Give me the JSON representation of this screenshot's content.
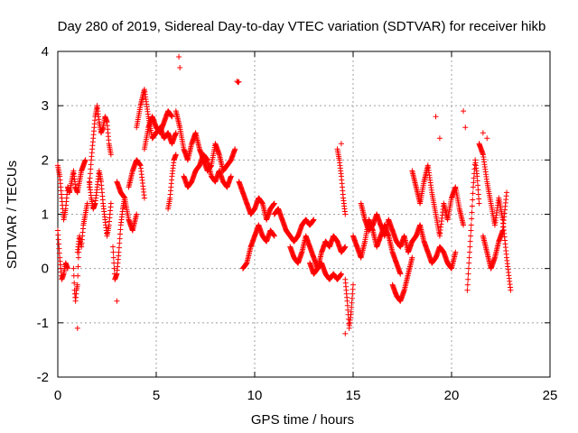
{
  "chart_data": {
    "type": "scatter",
    "title": "Day 280 of 2019, Sidereal Day-to-day VTEC variation (SDTVAR) for receiver hikb",
    "xlabel": "GPS time / hours",
    "ylabel": "SDTVAR / TECUs",
    "xlim": [
      0,
      25
    ],
    "ylim": [
      -2,
      4
    ],
    "xticks": [
      0,
      5,
      10,
      15,
      20,
      25
    ],
    "yticks": [
      -2,
      -1,
      0,
      1,
      2,
      3,
      4
    ],
    "xtick_labels": [
      "0",
      "5",
      "10",
      "15",
      "20",
      "25"
    ],
    "ytick_labels": [
      "-2",
      "-1",
      "0",
      "1",
      "2",
      "3",
      "4"
    ],
    "grid": true,
    "marker": "+",
    "series": [
      {
        "name": "SDTVAR",
        "color": "#ff0000",
        "segments": [
          {
            "x": [
              0.0,
              0.1,
              0.2,
              0.3,
              0.4,
              0.5,
              0.6,
              0.7,
              0.8,
              0.9,
              1.0,
              1.1,
              1.2,
              1.3,
              1.4
            ],
            "y": [
              1.9,
              1.7,
              1.3,
              0.9,
              1.1,
              1.5,
              1.4,
              1.6,
              1.8,
              1.5,
              1.4,
              1.6,
              1.8,
              1.9,
              2.0
            ]
          },
          {
            "x": [
              0.0,
              0.1,
              0.2,
              0.3,
              0.4,
              0.5
            ],
            "y": [
              0.7,
              0.2,
              -0.2,
              -0.1,
              0.1,
              0.0
            ]
          },
          {
            "x": [
              0.8,
              0.85,
              0.9,
              0.95,
              1.0,
              1.05,
              1.1
            ],
            "y": [
              0.0,
              -0.4,
              -0.6,
              -0.4,
              -0.3,
              0.2,
              0.5
            ]
          },
          {
            "x": [
              1.0,
              1.1,
              1.2,
              1.3,
              1.4,
              1.5
            ],
            "y": [
              0.3,
              0.6,
              0.4,
              0.8,
              1.0,
              1.2
            ]
          },
          {
            "x": [
              1.6,
              1.7,
              1.8,
              1.9,
              2.0,
              2.1,
              2.2,
              2.3,
              2.4,
              2.5,
              2.6,
              2.7
            ],
            "y": [
              1.5,
              2.0,
              2.4,
              2.8,
              3.0,
              2.7,
              2.5,
              2.6,
              2.8,
              2.7,
              2.3,
              2.1
            ]
          },
          {
            "x": [
              1.6,
              1.7,
              1.8,
              1.9,
              2.0,
              2.1,
              2.2,
              2.3,
              2.4,
              2.5,
              2.6,
              2.7
            ],
            "y": [
              1.6,
              1.3,
              1.1,
              1.2,
              1.5,
              1.8,
              1.6,
              1.2,
              0.9,
              0.6,
              0.8,
              1.2
            ]
          },
          {
            "x": [
              2.8,
              2.9,
              3.0,
              3.1,
              3.2,
              3.3,
              3.4
            ],
            "y": [
              0.4,
              -0.2,
              -0.1,
              0.3,
              0.8,
              1.1,
              1.3
            ]
          },
          {
            "x": [
              3.0,
              3.2,
              3.4,
              3.6,
              3.8,
              4.0
            ],
            "y": [
              1.6,
              1.4,
              1.3,
              0.9,
              0.7,
              1.0
            ]
          },
          {
            "x": [
              3.6,
              3.8,
              4.0,
              4.2,
              4.4
            ],
            "y": [
              1.5,
              1.8,
              2.0,
              1.9,
              1.3
            ]
          },
          {
            "x": [
              4.0,
              4.2,
              4.4,
              4.6,
              4.8,
              5.0,
              5.2,
              5.4,
              5.6,
              5.8,
              6.0
            ],
            "y": [
              2.6,
              3.0,
              3.3,
              2.8,
              2.4,
              2.5,
              2.6,
              2.4,
              2.5,
              2.3,
              2.5
            ]
          },
          {
            "x": [
              4.4,
              4.6,
              4.8,
              5.0,
              5.2,
              5.4,
              5.6,
              5.8
            ],
            "y": [
              2.2,
              2.6,
              2.8,
              2.6,
              2.5,
              2.7,
              2.9,
              2.8
            ]
          },
          {
            "x": [
              5.6,
              5.7,
              5.8,
              5.9,
              6.0
            ],
            "y": [
              1.1,
              1.3,
              1.7,
              2.0,
              2.1
            ]
          },
          {
            "x": [
              6.0,
              6.2,
              6.4,
              6.6,
              6.8,
              7.0,
              7.2,
              7.4,
              7.6,
              7.8,
              8.0,
              8.2,
              8.4,
              8.6,
              8.8,
              9.0
            ],
            "y": [
              2.9,
              2.6,
              2.2,
              2.0,
              2.3,
              2.5,
              2.2,
              2.0,
              1.8,
              1.9,
              2.3,
              2.1,
              1.8,
              1.9,
              2.0,
              2.2
            ]
          },
          {
            "x": [
              6.4,
              6.6,
              6.8,
              7.0,
              7.2,
              7.4,
              7.6,
              7.8,
              8.0,
              8.2,
              8.4,
              8.6,
              8.8
            ],
            "y": [
              1.7,
              1.5,
              1.6,
              1.8,
              1.9,
              2.1,
              2.0,
              1.7,
              1.6,
              1.8,
              1.6,
              1.5,
              1.7
            ]
          },
          {
            "x": [
              9.2,
              9.4,
              9.6,
              9.8,
              10.0,
              10.2,
              10.4,
              10.6,
              10.8,
              11.0
            ],
            "y": [
              1.6,
              1.4,
              1.2,
              1.0,
              1.1,
              1.3,
              1.2,
              0.9,
              1.1,
              1.2
            ]
          },
          {
            "x": [
              9.4,
              9.6,
              9.8,
              10.0,
              10.2,
              10.4,
              10.6,
              10.8,
              11.0
            ],
            "y": [
              0.0,
              0.1,
              0.4,
              0.6,
              0.8,
              0.6,
              0.5,
              0.7,
              0.6
            ]
          },
          {
            "x": [
              11.0,
              11.2,
              11.4,
              11.6,
              11.8,
              12.0,
              12.2,
              12.4,
              12.6,
              12.8,
              13.0
            ],
            "y": [
              1.0,
              1.1,
              0.9,
              0.7,
              0.6,
              0.5,
              0.6,
              0.8,
              0.9,
              0.8,
              0.9
            ]
          },
          {
            "x": [
              11.8,
              12.0,
              12.2,
              12.4,
              12.6,
              12.8,
              13.0,
              13.2,
              13.4,
              13.6,
              13.8,
              14.0,
              14.2,
              14.4,
              14.6
            ],
            "y": [
              0.4,
              0.2,
              0.1,
              0.3,
              0.6,
              0.4,
              0.2,
              0.0,
              0.3,
              0.5,
              0.4,
              0.6,
              0.5,
              0.3,
              0.4
            ]
          },
          {
            "x": [
              12.8,
              13.0,
              13.2,
              13.4,
              13.6,
              13.8,
              14.0,
              14.2,
              14.4
            ],
            "y": [
              0.1,
              -0.1,
              0.0,
              0.1,
              -0.1,
              -0.2,
              -0.1,
              -0.2,
              -0.1
            ]
          },
          {
            "x": [
              14.2,
              14.3,
              14.4,
              14.5,
              14.6
            ],
            "y": [
              2.2,
              2.0,
              1.7,
              1.3,
              1.0
            ]
          },
          {
            "x": [
              14.6,
              14.7,
              14.8,
              14.9,
              15.0
            ],
            "y": [
              -0.2,
              -0.6,
              -1.1,
              -0.8,
              -0.3
            ]
          },
          {
            "x": [
              15.0,
              15.2,
              15.4,
              15.6,
              15.8,
              16.0,
              16.2,
              16.4,
              16.6,
              16.8,
              17.0,
              17.2,
              17.4
            ],
            "y": [
              0.6,
              0.4,
              0.2,
              0.5,
              0.9,
              0.7,
              0.4,
              0.6,
              0.8,
              0.6,
              0.3,
              0.1,
              -0.1
            ]
          },
          {
            "x": [
              15.4,
              15.6,
              15.8,
              16.0,
              16.2,
              16.4,
              16.6,
              16.8,
              17.0,
              17.2,
              17.4,
              17.6,
              17.8,
              18.0,
              18.2,
              18.4
            ],
            "y": [
              1.2,
              0.9,
              0.7,
              0.8,
              1.0,
              0.8,
              0.6,
              0.9,
              0.7,
              0.5,
              0.4,
              0.6,
              0.3,
              0.5,
              0.6,
              0.8
            ]
          },
          {
            "x": [
              17.0,
              17.2,
              17.4,
              17.6,
              17.8,
              18.0
            ],
            "y": [
              -0.3,
              -0.5,
              -0.6,
              -0.4,
              -0.1,
              0.2
            ]
          },
          {
            "x": [
              18.0,
              18.2,
              18.4,
              18.6,
              18.8,
              19.0,
              19.2,
              19.4,
              19.6,
              19.8,
              20.0,
              20.2,
              20.4,
              20.6
            ],
            "y": [
              1.8,
              1.5,
              1.2,
              1.6,
              1.9,
              1.4,
              1.0,
              0.6,
              1.2,
              0.9,
              1.3,
              1.5,
              1.1,
              0.8
            ]
          },
          {
            "x": [
              18.4,
              18.6,
              18.8,
              19.0,
              19.2,
              19.4,
              19.6,
              19.8,
              20.0,
              20.2
            ],
            "y": [
              0.8,
              0.5,
              0.3,
              0.1,
              0.2,
              0.4,
              0.3,
              0.1,
              0.0,
              0.3
            ]
          },
          {
            "x": [
              20.8,
              20.9,
              21.0,
              21.1,
              21.2,
              21.3,
              21.4
            ],
            "y": [
              -0.4,
              0.2,
              0.8,
              1.5,
              2.0,
              1.7,
              1.2
            ]
          },
          {
            "x": [
              21.4,
              21.6,
              21.8,
              22.0,
              22.2,
              22.4,
              22.6,
              22.8,
              23.0
            ],
            "y": [
              2.3,
              2.1,
              1.6,
              1.2,
              0.8,
              1.3,
              0.9,
              0.2,
              -0.4
            ]
          },
          {
            "x": [
              21.6,
              21.8,
              22.0,
              22.2,
              22.4,
              22.6,
              22.8
            ],
            "y": [
              0.6,
              0.3,
              0.0,
              0.2,
              0.5,
              0.7,
              1.4
            ]
          }
        ],
        "outliers": {
          "x": [
            6.15,
            6.2,
            9.1,
            9.15,
            9.2,
            19.2,
            19.4,
            20.6,
            20.7,
            21.6,
            21.8,
            3.0,
            1.0,
            14.6,
            14.4
          ],
          "y": [
            3.9,
            3.7,
            3.45,
            3.43,
            3.44,
            2.8,
            2.4,
            2.9,
            2.6,
            2.5,
            2.4,
            -0.6,
            -1.1,
            -1.2,
            2.3
          ]
        }
      }
    ]
  }
}
